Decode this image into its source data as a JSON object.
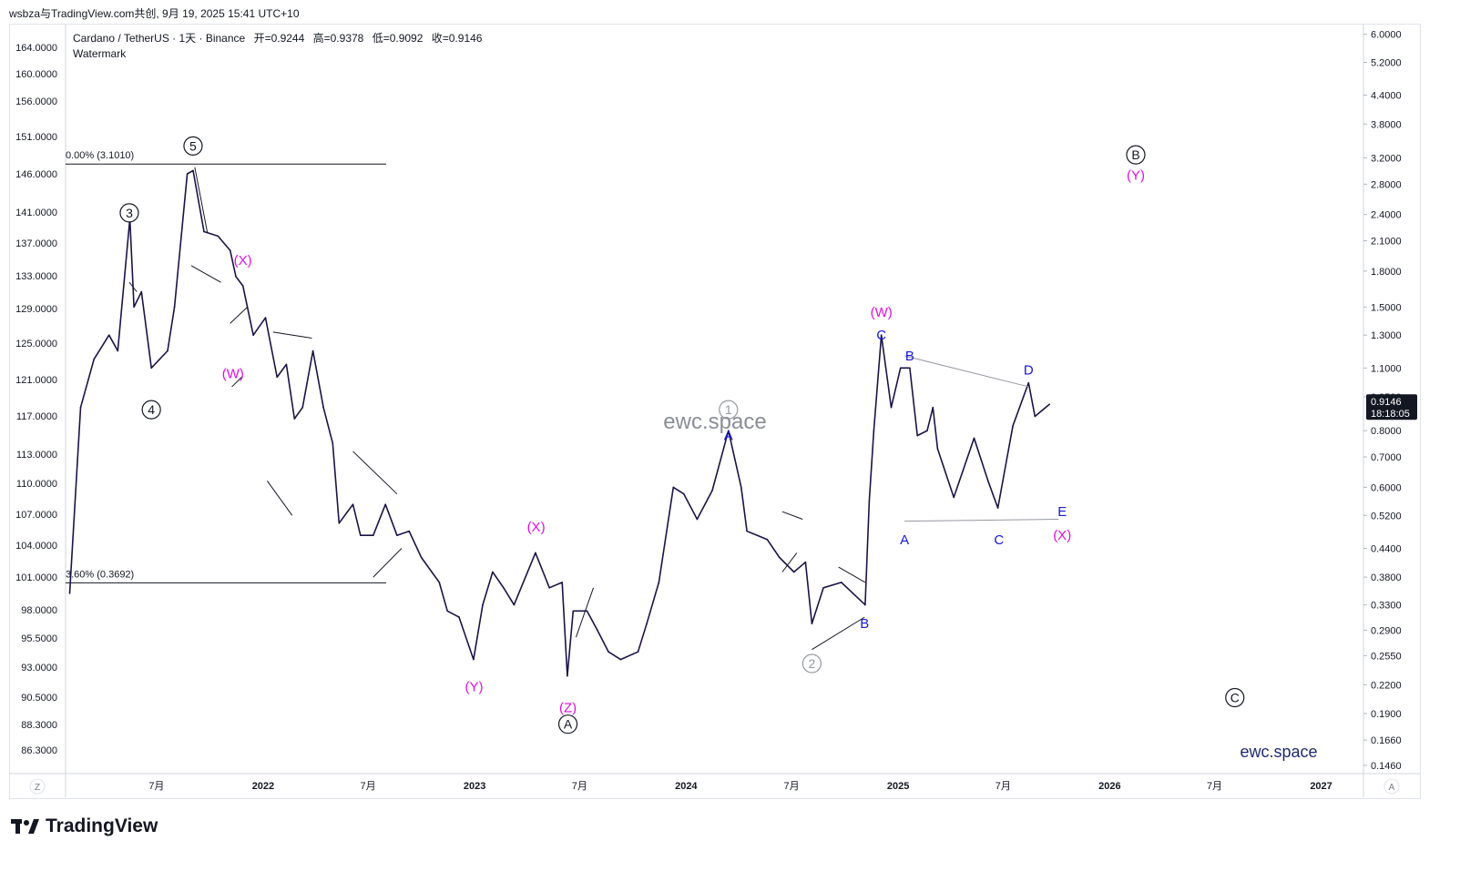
{
  "share_line": "wsbza与TradingView.com共创, 9月 19, 2025 15:41 UTC+10",
  "legend": {
    "symbol": "Cardano / TetherUS · 1天 · Binance",
    "open": "开=0.9244",
    "high": "高=0.9378",
    "low": "低=0.9092",
    "close": "收=0.9146",
    "indicator": "Watermark"
  },
  "price_tag": {
    "value": "0.9146",
    "countdown": "18:18:05",
    "color": "#131722"
  },
  "left_axis_labels": [
    "164.0000",
    "160.0000",
    "156.0000",
    "151.0000",
    "146.0000",
    "141.0000",
    "137.0000",
    "133.0000",
    "129.0000",
    "125.0000",
    "121.0000",
    "117.0000",
    "113.0000",
    "110.0000",
    "107.0000",
    "104.0000",
    "101.0000",
    "98.0000",
    "95.5000",
    "93.0000",
    "90.5000",
    "88.3000",
    "86.3000"
  ],
  "right_axis_labels": [
    "6.0000",
    "5.2000",
    "4.4000",
    "3.8000",
    "3.2000",
    "2.8000",
    "2.4000",
    "2.1000",
    "1.8000",
    "1.5000",
    "1.3000",
    "1.1000",
    "0.9500",
    "0.8000",
    "0.7000",
    "0.6000",
    "0.5200",
    "0.4400",
    "0.3800",
    "0.3300",
    "0.2900",
    "0.2550",
    "0.2200",
    "0.1900",
    "0.1660",
    "0.1460"
  ],
  "x_axis_labels": [
    "7月",
    "2022",
    "7月",
    "2023",
    "7月",
    "2024",
    "7月",
    "2025",
    "7月",
    "2026",
    "7月",
    "2027"
  ],
  "axis_corner_left": "Z",
  "axis_corner_right": "A",
  "fib_levels": [
    {
      "label": "0.00% (3.1010)",
      "price": 3.101
    },
    {
      "label": "3.60% (0.3692)",
      "price": 0.3692
    }
  ],
  "watermark_center": "ewc.space",
  "watermark_corner": "ewc.space",
  "wave_labels": [
    {
      "text": "3",
      "style": "circle-black",
      "date": "2021-05-15",
      "price": 2.42
    },
    {
      "text": "4",
      "style": "circle-black",
      "date": "2021-06-22",
      "price": 0.89
    },
    {
      "text": "5",
      "style": "circle-black",
      "date": "2021-09-02",
      "price": 3.4
    },
    {
      "text": "(X)",
      "style": "magenta",
      "date": "2021-11-27",
      "price": 1.9
    },
    {
      "text": "(W)",
      "style": "magenta",
      "date": "2021-11-10",
      "price": 1.07
    },
    {
      "text": "(Y)",
      "style": "magenta",
      "date": "2022-12-31",
      "price": 0.218
    },
    {
      "text": "(X)",
      "style": "magenta",
      "date": "2023-04-17",
      "price": 0.49
    },
    {
      "text": "(Z)",
      "style": "magenta",
      "date": "2023-06-11",
      "price": 0.196
    },
    {
      "text": "A",
      "style": "circle-black",
      "date": "2023-06-11",
      "price": 0.18
    },
    {
      "text": "1",
      "style": "circle-grey",
      "date": "2024-03-14",
      "price": 0.89
    },
    {
      "text": "A",
      "style": "blue",
      "date": "2024-03-14",
      "price": 0.78
    },
    {
      "text": "2",
      "style": "circle-grey",
      "date": "2024-08-05",
      "price": 0.245
    },
    {
      "text": "B",
      "style": "blue",
      "date": "2024-11-04",
      "price": 0.3
    },
    {
      "text": "(W)",
      "style": "magenta",
      "date": "2024-12-03",
      "price": 1.46
    },
    {
      "text": "C",
      "style": "blue",
      "date": "2024-12-03",
      "price": 1.3
    },
    {
      "text": "B",
      "style": "blue",
      "date": "2025-01-21",
      "price": 1.17
    },
    {
      "text": "A",
      "style": "blue",
      "date": "2025-01-12",
      "price": 0.46
    },
    {
      "text": "C",
      "style": "blue",
      "date": "2025-06-24",
      "price": 0.46
    },
    {
      "text": "D",
      "style": "blue",
      "date": "2025-08-14",
      "price": 1.09
    },
    {
      "text": "E",
      "style": "blue",
      "date": "2025-10-11",
      "price": 0.53
    },
    {
      "text": "(X)",
      "style": "magenta",
      "date": "2025-10-11",
      "price": 0.47
    },
    {
      "text": "B",
      "style": "circle-black",
      "date": "2026-02-15",
      "price": 3.25
    },
    {
      "text": "(Y)",
      "style": "magenta",
      "date": "2026-02-15",
      "price": 2.93
    },
    {
      "text": "C",
      "style": "circle-black",
      "date": "2026-08-05",
      "price": 0.206
    }
  ],
  "chart_data": {
    "type": "line",
    "title": "Cardano / TetherUS · 1天 · Binance",
    "y_scale": "log",
    "ylim_right": [
      0.14,
      6.3
    ],
    "x_range": [
      "2021-01-25",
      "2027-03-15"
    ],
    "series": [
      {
        "name": "Cardano / TetherUS",
        "color": "#1a1446",
        "x": [
          "2021-02-01",
          "2021-02-20",
          "2021-03-15",
          "2021-04-10",
          "2021-04-25",
          "2021-05-16",
          "2021-05-23",
          "2021-06-05",
          "2021-06-22",
          "2021-07-20",
          "2021-08-01",
          "2021-08-23",
          "2021-09-02",
          "2021-09-21",
          "2021-10-15",
          "2021-11-05",
          "2021-11-15",
          "2021-11-27",
          "2021-12-15",
          "2022-01-05",
          "2022-01-25",
          "2022-02-10",
          "2022-02-24",
          "2022-03-10",
          "2022-03-28",
          "2022-04-15",
          "2022-05-01",
          "2022-05-12",
          "2022-06-05",
          "2022-06-18",
          "2022-07-10",
          "2022-07-31",
          "2022-08-20",
          "2022-09-10",
          "2022-10-01",
          "2022-11-01",
          "2022-11-15",
          "2022-12-05",
          "2022-12-30",
          "2023-01-15",
          "2023-02-01",
          "2023-02-20",
          "2023-03-10",
          "2023-04-16",
          "2023-05-10",
          "2023-06-01",
          "2023-06-10",
          "2023-06-20",
          "2023-07-14",
          "2023-08-01",
          "2023-08-20",
          "2023-09-10",
          "2023-10-10",
          "2023-10-25",
          "2023-11-15",
          "2023-12-10",
          "2023-12-28",
          "2024-01-20",
          "2024-02-15",
          "2024-03-14",
          "2024-04-05",
          "2024-04-15",
          "2024-05-20",
          "2024-06-10",
          "2024-07-05",
          "2024-07-25",
          "2024-08-05",
          "2024-08-25",
          "2024-09-25",
          "2024-10-15",
          "2024-11-05",
          "2024-11-12",
          "2024-11-20",
          "2024-12-03",
          "2024-12-20",
          "2025-01-05",
          "2025-01-21",
          "2025-02-03",
          "2025-02-20",
          "2025-03-02",
          "2025-03-10",
          "2025-04-07",
          "2025-05-12",
          "2025-06-05",
          "2025-06-22",
          "2025-07-18",
          "2025-08-14",
          "2025-08-25",
          "2025-09-19"
        ],
        "values": [
          0.35,
          0.9,
          1.15,
          1.3,
          1.2,
          2.35,
          1.5,
          1.62,
          1.1,
          1.2,
          1.5,
          2.95,
          3.0,
          2.2,
          2.15,
          2.0,
          1.75,
          1.67,
          1.3,
          1.42,
          1.05,
          1.12,
          0.85,
          0.9,
          1.2,
          0.9,
          0.75,
          0.5,
          0.55,
          0.47,
          0.47,
          0.55,
          0.47,
          0.48,
          0.42,
          0.37,
          0.32,
          0.31,
          0.25,
          0.33,
          0.39,
          0.36,
          0.33,
          0.43,
          0.36,
          0.37,
          0.23,
          0.32,
          0.32,
          0.29,
          0.26,
          0.25,
          0.26,
          0.3,
          0.37,
          0.6,
          0.58,
          0.51,
          0.59,
          0.8,
          0.6,
          0.48,
          0.46,
          0.42,
          0.39,
          0.41,
          0.3,
          0.36,
          0.37,
          0.35,
          0.33,
          0.56,
          0.8,
          1.3,
          0.9,
          1.1,
          1.1,
          0.78,
          0.8,
          0.9,
          0.73,
          0.57,
          0.77,
          0.62,
          0.54,
          0.82,
          1.02,
          0.86,
          0.9146
        ]
      }
    ],
    "trendlines": [
      {
        "from": [
          "2021-05-15",
          1.7
        ],
        "to": [
          "2021-05-28",
          1.62
        ]
      },
      {
        "from": [
          "2021-09-05",
          3.05
        ],
        "to": [
          "2021-09-27",
          2.18
        ]
      },
      {
        "from": [
          "2021-08-30",
          1.85
        ],
        "to": [
          "2021-10-20",
          1.7
        ]
      },
      {
        "from": [
          "2021-11-05",
          1.38
        ],
        "to": [
          "2021-12-05",
          1.5
        ]
      },
      {
        "from": [
          "2021-11-08",
          1.0
        ],
        "to": [
          "2021-11-25",
          1.05
        ]
      },
      {
        "from": [
          "2022-01-08",
          0.62
        ],
        "to": [
          "2022-02-20",
          0.52
        ]
      },
      {
        "from": [
          "2022-01-18",
          1.32
        ],
        "to": [
          "2022-03-26",
          1.28
        ]
      },
      {
        "from": [
          "2022-06-05",
          0.72
        ],
        "to": [
          "2022-08-20",
          0.58
        ]
      },
      {
        "from": [
          "2022-07-10",
          0.38
        ],
        "to": [
          "2022-08-28",
          0.44
        ]
      },
      {
        "from": [
          "2023-06-25",
          0.28
        ],
        "to": [
          "2023-07-25",
          0.36
        ]
      },
      {
        "from": [
          "2024-06-15",
          0.53
        ],
        "to": [
          "2024-07-20",
          0.51
        ]
      },
      {
        "from": [
          "2024-06-15",
          0.39
        ],
        "to": [
          "2024-07-10",
          0.43
        ]
      },
      {
        "from": [
          "2024-08-05",
          0.263
        ],
        "to": [
          "2024-11-04",
          0.31
        ]
      },
      {
        "from": [
          "2024-09-20",
          0.4
        ],
        "to": [
          "2024-11-05",
          0.37
        ]
      },
      {
        "from": [
          "2025-01-12",
          1.17
        ],
        "to": [
          "2025-08-14",
          1.0
        ]
      },
      {
        "from": [
          "2025-01-12",
          0.505
        ],
        "to": [
          "2025-10-05",
          0.51
        ]
      }
    ]
  }
}
